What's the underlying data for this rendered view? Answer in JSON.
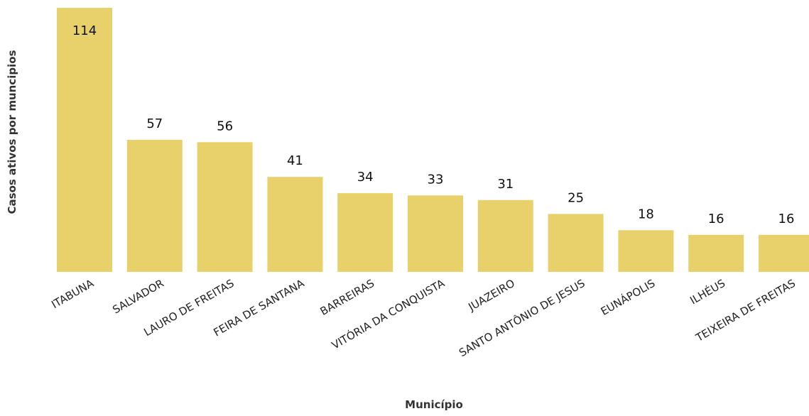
{
  "chart_data": {
    "type": "bar",
    "categories": [
      "ITABUNA",
      "SALVADOR",
      "LAURO DE FREITAS",
      "FEIRA DE SANTANA",
      "BARREIRAS",
      "VITÓRIA DA CONQUISTA",
      "JUAZEIRO",
      "SANTO ANTÔNIO DE JESUS",
      "EUNÁPOLIS",
      "ILHÉUS",
      "TEIXEIRA DE FREITAS"
    ],
    "values": [
      114,
      57,
      56,
      41,
      34,
      33,
      31,
      25,
      18,
      16,
      16
    ],
    "title": "",
    "xlabel": "Município",
    "ylabel": "Casos ativos por muncipios",
    "ylim": [
      0,
      114
    ],
    "grid": false,
    "legend": "none",
    "bar_color": "#E8D16A",
    "data_labels": true
  }
}
